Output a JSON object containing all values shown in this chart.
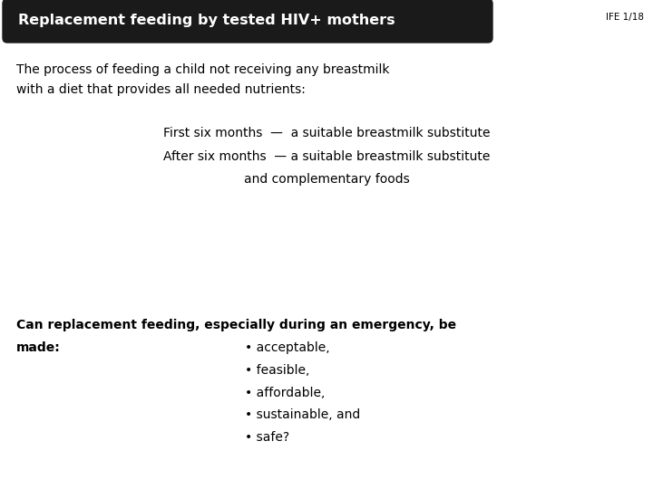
{
  "title": "Replacement feeding by tested HIV+ mothers",
  "slide_id": "IFE 1/18",
  "bg_color": "#ffffff",
  "title_bg_color": "#1a1a1a",
  "title_text_color": "#ffffff",
  "title_fontsize": 11.5,
  "body_fontsize": 10,
  "indent_fontsize": 10,
  "bold_fontsize": 10,
  "slide_id_fontsize": 7.5,
  "para1_line1": "The process of feeding a child not receiving any breastmilk",
  "para1_line2": "with a diet that provides all needed nutrients:",
  "indent_line1": "First six months  —  a suitable breastmilk substitute",
  "indent_line2": "After six months  — a suitable breastmilk substitute",
  "indent_line3": "and complementary foods",
  "bold_line1": "Can replacement feeding, especially during an emergency, be",
  "bold_line2": "made:",
  "bullet_items": [
    "• acceptable,",
    "• feasible,",
    "• affordable,",
    "• sustainable, and",
    "• safe?"
  ]
}
